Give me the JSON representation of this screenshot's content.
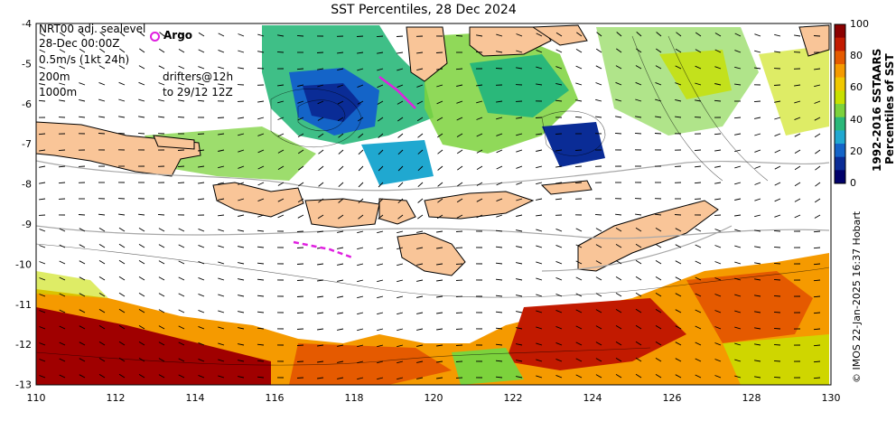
{
  "title": "SST Percentiles, 28 Dec 2024",
  "legend": {
    "line1": "NRT00 adj. sealevel",
    "line2": "28-Dec 00:00Z",
    "line3": "0.5m/s (1kt 24h)",
    "line4": "200m",
    "line5": "1000m",
    "argo": "Argo",
    "drifters1": "drifters@12h",
    "drifters2": "to 29/12 12Z"
  },
  "colorbar": {
    "title1": "1992-2016 SSTAARS",
    "title2": "Percentiles of SST",
    "ticks": [
      "100",
      "80",
      "60",
      "40",
      "20",
      "0"
    ],
    "colors": [
      "#8b0000",
      "#c21a00",
      "#e55a00",
      "#f59a00",
      "#f0c800",
      "#c8e000",
      "#7cd23c",
      "#2ab87a",
      "#20a8d0",
      "#1464c8",
      "#0a2c96",
      "#00006a"
    ]
  },
  "axes": {
    "x_ticks": [
      "110",
      "112",
      "114",
      "116",
      "118",
      "120",
      "122",
      "124",
      "126",
      "128",
      "130"
    ],
    "y_ticks": [
      "-4",
      "-5",
      "-6",
      "-7",
      "-8",
      "-9",
      "-10",
      "-11",
      "-12",
      "-13"
    ]
  },
  "credit": "© IMOS 22-Jan-2025 16:37 Hobart",
  "colors": {
    "land": "#f9c598",
    "argo": "#e020e0",
    "contour": "#a8a8a8"
  }
}
